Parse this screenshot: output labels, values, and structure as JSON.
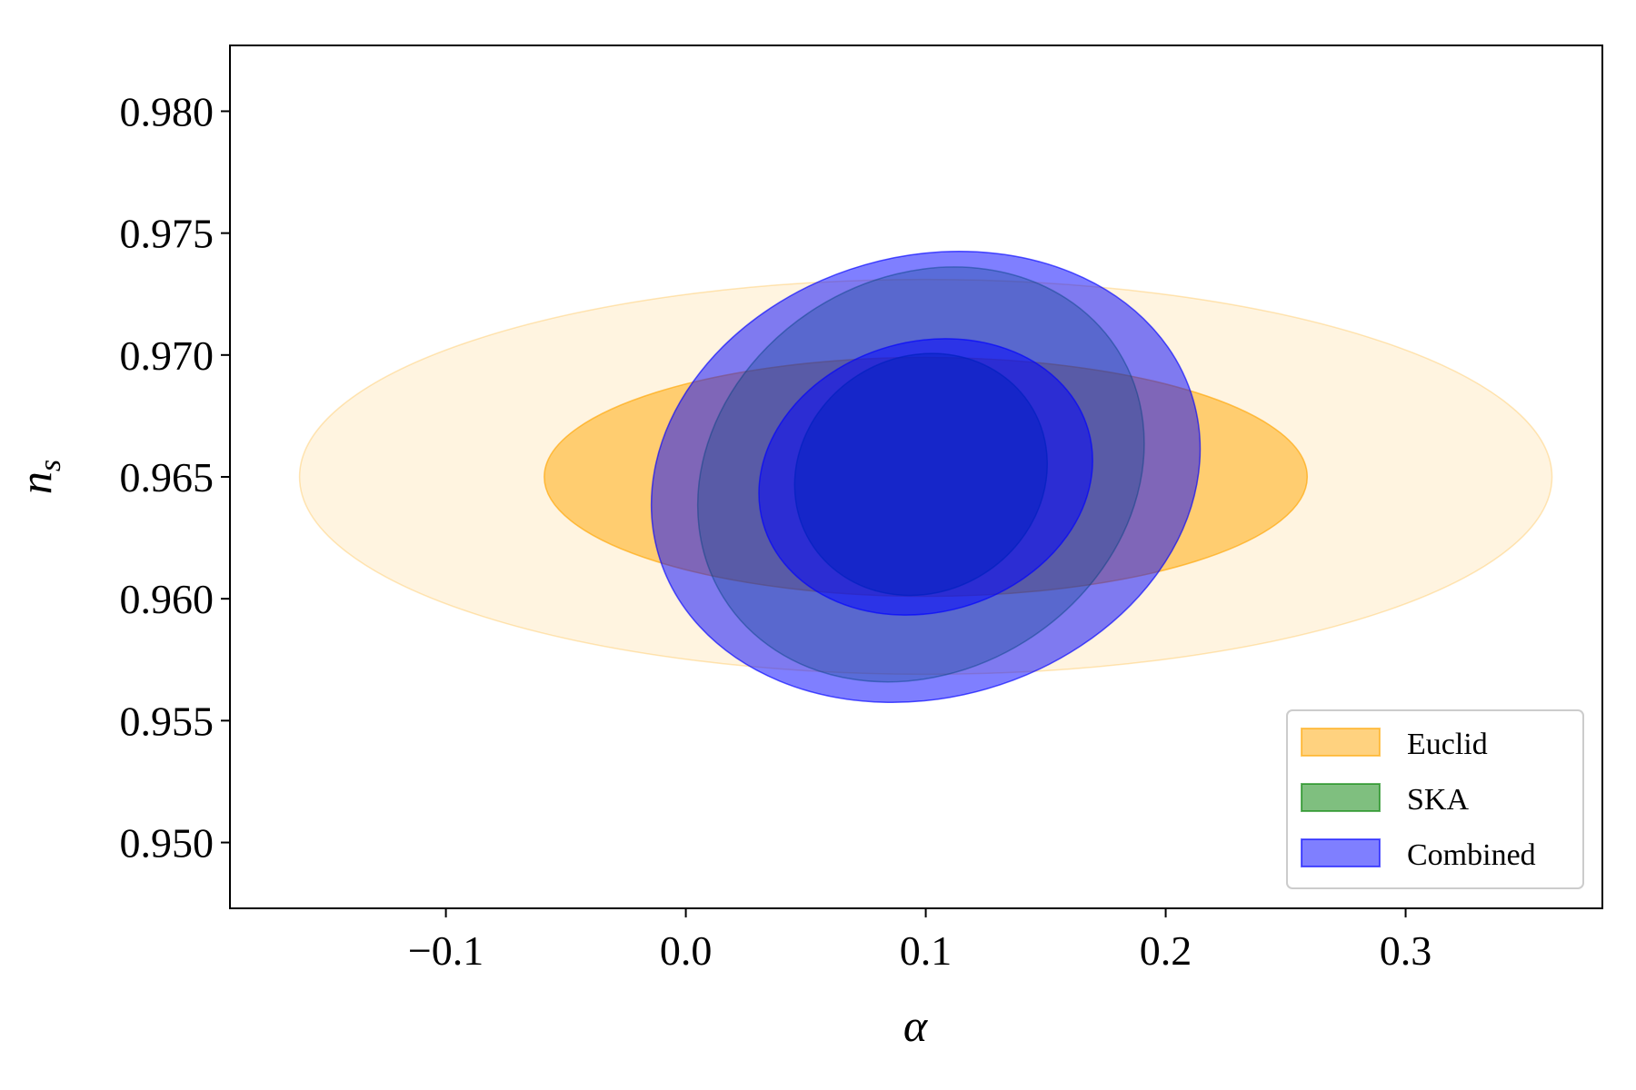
{
  "chart_data": {
    "type": "contour",
    "xlabel": "α",
    "ylabel": "n",
    "ylabel_subscript": "s",
    "xlim": [
      -0.19,
      0.382
    ],
    "ylim": [
      0.9473,
      0.9827
    ],
    "xticks": [
      -0.1,
      0.0,
      0.1,
      0.2,
      0.3
    ],
    "xtick_labels": [
      "−0.1",
      "0.0",
      "0.1",
      "0.2",
      "0.3"
    ],
    "yticks": [
      0.95,
      0.955,
      0.96,
      0.965,
      0.97,
      0.975,
      0.98
    ],
    "ytick_labels": [
      "0.950",
      "0.955",
      "0.960",
      "0.965",
      "0.970",
      "0.975",
      "0.980"
    ],
    "grid": false,
    "legend_position": "bottom-right",
    "series": [
      {
        "name": "Euclid",
        "color": "#FFA500",
        "center": [
          0.1,
          0.965
        ],
        "levels": [
          {
            "sigma": 1,
            "x_halfwidth": 0.159,
            "y_halfwidth": 0.0049,
            "angle_deg": 0,
            "opacity": 0.5
          },
          {
            "sigma": 2,
            "x_halfwidth": 0.261,
            "y_halfwidth": 0.0081,
            "angle_deg": 0,
            "opacity": 0.12
          }
        ]
      },
      {
        "name": "SKA",
        "color": "#008000",
        "center": [
          0.098,
          0.9651
        ],
        "levels": [
          {
            "sigma": 1,
            "x_halfwidth": 0.054,
            "y_halfwidth": 0.00482,
            "angle_deg": 32,
            "opacity": 0.5
          },
          {
            "sigma": 2,
            "x_halfwidth": 0.097,
            "y_halfwidth": 0.00807,
            "angle_deg": 32,
            "opacity": 0.3
          }
        ]
      },
      {
        "name": "Combined",
        "color": "#0000FF",
        "center": [
          0.1,
          0.965
        ],
        "levels": [
          {
            "sigma": 1,
            "x_halfwidth": 0.0705,
            "y_halfwidth": 0.00555,
            "angle_deg": 16,
            "opacity": 0.5
          },
          {
            "sigma": 2,
            "x_halfwidth": 0.116,
            "y_halfwidth": 0.00905,
            "angle_deg": 16,
            "opacity": 0.5
          }
        ]
      }
    ]
  }
}
